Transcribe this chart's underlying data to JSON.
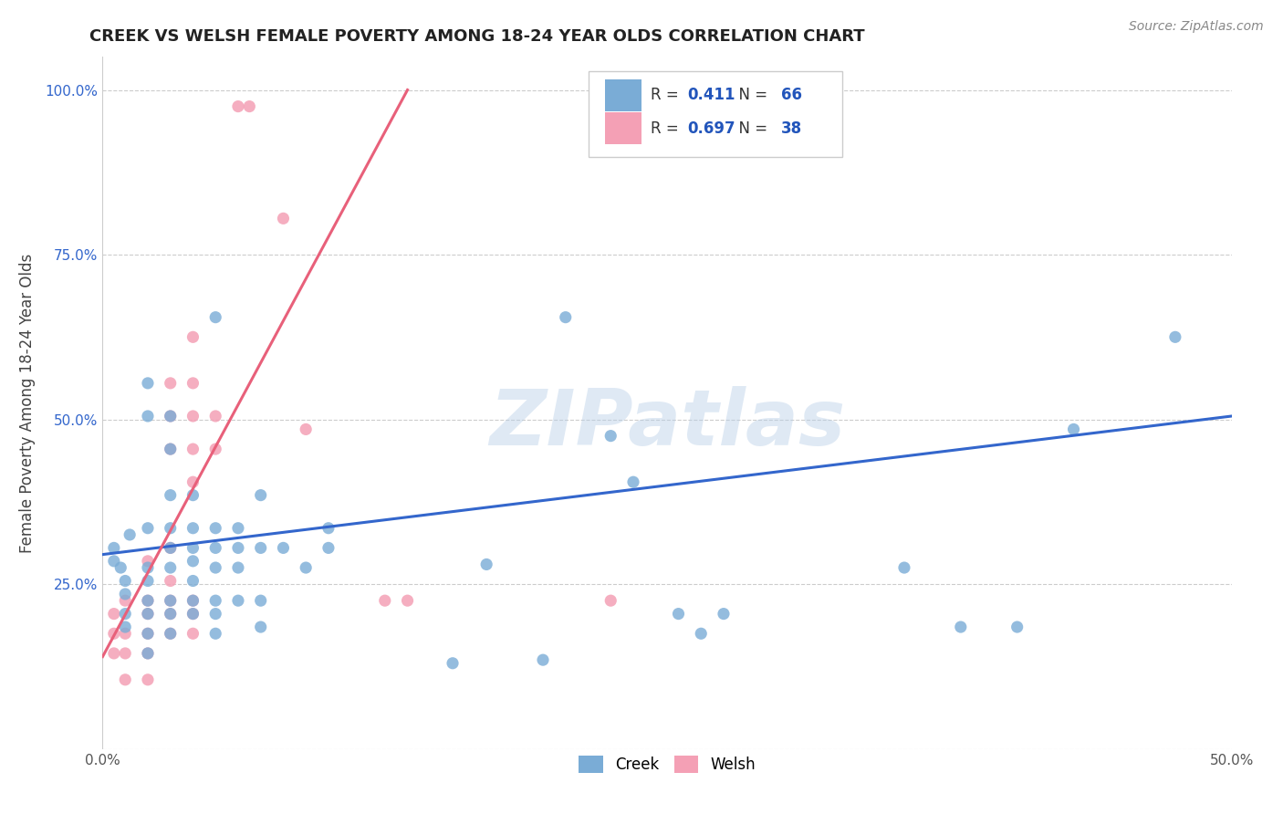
{
  "title": "CREEK VS WELSH FEMALE POVERTY AMONG 18-24 YEAR OLDS CORRELATION CHART",
  "source": "Source: ZipAtlas.com",
  "ylabel": "Female Poverty Among 18-24 Year Olds",
  "xlim": [
    0.0,
    0.5
  ],
  "ylim": [
    0.0,
    1.05
  ],
  "creek_color": "#7aacd6",
  "welsh_color": "#f4a0b5",
  "creek_line_color": "#3366cc",
  "welsh_line_color": "#e8607a",
  "creek_R": 0.411,
  "creek_N": 66,
  "welsh_R": 0.697,
  "welsh_N": 38,
  "background_color": "#ffffff",
  "grid_color": "#cccccc",
  "watermark": "ZIPatlas",
  "creek_line_x": [
    0.0,
    0.5
  ],
  "creek_line_y": [
    0.295,
    0.505
  ],
  "welsh_line_x": [
    0.0,
    0.135
  ],
  "welsh_line_y": [
    0.14,
    1.0
  ],
  "creek_scatter": [
    [
      0.005,
      0.305
    ],
    [
      0.005,
      0.285
    ],
    [
      0.008,
      0.275
    ],
    [
      0.01,
      0.235
    ],
    [
      0.01,
      0.255
    ],
    [
      0.01,
      0.205
    ],
    [
      0.01,
      0.185
    ],
    [
      0.012,
      0.325
    ],
    [
      0.02,
      0.335
    ],
    [
      0.02,
      0.555
    ],
    [
      0.02,
      0.505
    ],
    [
      0.02,
      0.275
    ],
    [
      0.02,
      0.255
    ],
    [
      0.02,
      0.225
    ],
    [
      0.02,
      0.205
    ],
    [
      0.02,
      0.175
    ],
    [
      0.02,
      0.145
    ],
    [
      0.03,
      0.505
    ],
    [
      0.03,
      0.455
    ],
    [
      0.03,
      0.385
    ],
    [
      0.03,
      0.335
    ],
    [
      0.03,
      0.305
    ],
    [
      0.03,
      0.275
    ],
    [
      0.03,
      0.225
    ],
    [
      0.03,
      0.205
    ],
    [
      0.03,
      0.175
    ],
    [
      0.04,
      0.385
    ],
    [
      0.04,
      0.335
    ],
    [
      0.04,
      0.305
    ],
    [
      0.04,
      0.285
    ],
    [
      0.04,
      0.255
    ],
    [
      0.04,
      0.225
    ],
    [
      0.04,
      0.205
    ],
    [
      0.05,
      0.655
    ],
    [
      0.05,
      0.335
    ],
    [
      0.05,
      0.305
    ],
    [
      0.05,
      0.275
    ],
    [
      0.05,
      0.225
    ],
    [
      0.05,
      0.205
    ],
    [
      0.05,
      0.175
    ],
    [
      0.06,
      0.335
    ],
    [
      0.06,
      0.305
    ],
    [
      0.06,
      0.275
    ],
    [
      0.06,
      0.225
    ],
    [
      0.07,
      0.385
    ],
    [
      0.07,
      0.305
    ],
    [
      0.07,
      0.225
    ],
    [
      0.07,
      0.185
    ],
    [
      0.08,
      0.305
    ],
    [
      0.09,
      0.275
    ],
    [
      0.1,
      0.335
    ],
    [
      0.1,
      0.305
    ],
    [
      0.155,
      0.13
    ],
    [
      0.17,
      0.28
    ],
    [
      0.195,
      0.135
    ],
    [
      0.205,
      0.655
    ],
    [
      0.225,
      0.475
    ],
    [
      0.235,
      0.405
    ],
    [
      0.255,
      0.205
    ],
    [
      0.265,
      0.175
    ],
    [
      0.275,
      0.205
    ],
    [
      0.355,
      0.275
    ],
    [
      0.38,
      0.185
    ],
    [
      0.405,
      0.185
    ],
    [
      0.43,
      0.485
    ],
    [
      0.475,
      0.625
    ]
  ],
  "welsh_scatter": [
    [
      0.005,
      0.205
    ],
    [
      0.005,
      0.175
    ],
    [
      0.005,
      0.145
    ],
    [
      0.01,
      0.225
    ],
    [
      0.01,
      0.175
    ],
    [
      0.01,
      0.145
    ],
    [
      0.01,
      0.105
    ],
    [
      0.02,
      0.285
    ],
    [
      0.02,
      0.225
    ],
    [
      0.02,
      0.205
    ],
    [
      0.02,
      0.175
    ],
    [
      0.02,
      0.145
    ],
    [
      0.02,
      0.105
    ],
    [
      0.03,
      0.555
    ],
    [
      0.03,
      0.505
    ],
    [
      0.03,
      0.455
    ],
    [
      0.03,
      0.305
    ],
    [
      0.03,
      0.255
    ],
    [
      0.03,
      0.225
    ],
    [
      0.03,
      0.205
    ],
    [
      0.03,
      0.175
    ],
    [
      0.04,
      0.625
    ],
    [
      0.04,
      0.555
    ],
    [
      0.04,
      0.505
    ],
    [
      0.04,
      0.455
    ],
    [
      0.04,
      0.405
    ],
    [
      0.04,
      0.225
    ],
    [
      0.04,
      0.205
    ],
    [
      0.04,
      0.175
    ],
    [
      0.05,
      0.505
    ],
    [
      0.05,
      0.455
    ],
    [
      0.06,
      0.975
    ],
    [
      0.065,
      0.975
    ],
    [
      0.08,
      0.805
    ],
    [
      0.09,
      0.485
    ],
    [
      0.125,
      0.225
    ],
    [
      0.135,
      0.225
    ],
    [
      0.225,
      0.225
    ]
  ]
}
